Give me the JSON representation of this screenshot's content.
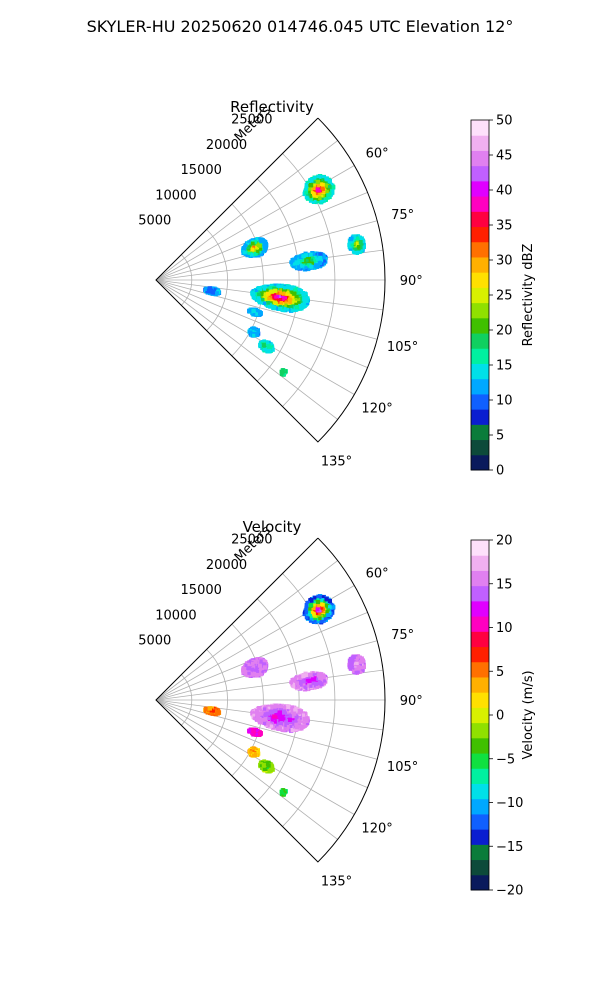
{
  "figure": {
    "suptitle": "SKYLER-HU  20250620  014746.045 UTC Elevation 12°"
  },
  "chart_data": [
    {
      "type": "heatmap",
      "subtype": "polar-sector",
      "title": "Reflectivity",
      "r_axis_label": "Meters",
      "r_ticks": [
        5000,
        10000,
        15000,
        20000,
        25000
      ],
      "r_tick_labels": [
        "5000",
        "10000",
        "15000",
        "20000",
        "25000"
      ],
      "rlim": [
        0,
        32000
      ],
      "theta_range_deg": [
        45,
        135
      ],
      "theta_ticks_deg": [
        60,
        75,
        90,
        105,
        120,
        135
      ],
      "theta_tick_labels": [
        "60°",
        "75°",
        "90°",
        "105°",
        "120°",
        "135°"
      ],
      "grid": true,
      "colorbar": {
        "label": "Reflectivity dBZ",
        "vmin": 0,
        "vmax": 50,
        "ticks": [
          0,
          5,
          10,
          15,
          20,
          25,
          30,
          35,
          40,
          45,
          50
        ],
        "tick_labels": [
          "0",
          "5",
          "10",
          "15",
          "20",
          "25",
          "30",
          "35",
          "40",
          "45",
          "50"
        ],
        "colors": [
          "#0a1a5c",
          "#0d4a3a",
          "#0a7c3a",
          "#0a1ed0",
          "#1060ff",
          "#00a8ff",
          "#00e0e8",
          "#00f0a0",
          "#10d060",
          "#40c000",
          "#90e000",
          "#d8f000",
          "#ffe000",
          "#ffb000",
          "#ff7000",
          "#ff2000",
          "#ff0040",
          "#ff00c0",
          "#e000ff",
          "#c060ff",
          "#e080f0",
          "#f0b0f0",
          "#fde0fb"
        ]
      },
      "cells": [
        {
          "range_m": 26000,
          "azimuth_deg": 61,
          "radial_extent_m": 4200,
          "angular_extent_deg": 8,
          "core_value": 40,
          "edge_value": 15
        },
        {
          "range_m": 14500,
          "azimuth_deg": 72,
          "radial_extent_m": 3600,
          "angular_extent_deg": 9,
          "core_value": 33,
          "edge_value": 12
        },
        {
          "range_m": 28500,
          "azimuth_deg": 80,
          "radial_extent_m": 2200,
          "angular_extent_deg": 5,
          "core_value": 25,
          "edge_value": 14
        },
        {
          "range_m": 21500,
          "azimuth_deg": 83,
          "radial_extent_m": 5000,
          "angular_extent_deg": 6,
          "core_value": 22,
          "edge_value": 12
        },
        {
          "range_m": 17500,
          "azimuth_deg": 98,
          "radial_extent_m": 8000,
          "angular_extent_deg": 11,
          "core_value": 43,
          "edge_value": 14
        },
        {
          "range_m": 8000,
          "azimuth_deg": 101,
          "radial_extent_m": 2000,
          "angular_extent_deg": 6,
          "core_value": 8,
          "edge_value": 12
        },
        {
          "range_m": 14500,
          "azimuth_deg": 108,
          "radial_extent_m": 1800,
          "angular_extent_deg": 3,
          "core_value": 14,
          "edge_value": 12
        },
        {
          "range_m": 15500,
          "azimuth_deg": 118,
          "radial_extent_m": 1400,
          "angular_extent_deg": 4,
          "core_value": 14,
          "edge_value": 12
        },
        {
          "range_m": 18000,
          "azimuth_deg": 121,
          "radial_extent_m": 2000,
          "angular_extent_deg": 4,
          "core_value": 20,
          "edge_value": 14
        },
        {
          "range_m": 22000,
          "azimuth_deg": 126,
          "radial_extent_m": 700,
          "angular_extent_deg": 2,
          "core_value": 18,
          "edge_value": 18
        }
      ]
    },
    {
      "type": "heatmap",
      "subtype": "polar-sector",
      "title": "Velocity",
      "r_axis_label": "Meters",
      "r_ticks": [
        5000,
        10000,
        15000,
        20000,
        25000
      ],
      "r_tick_labels": [
        "5000",
        "10000",
        "15000",
        "20000",
        "25000"
      ],
      "rlim": [
        0,
        32000
      ],
      "theta_range_deg": [
        45,
        135
      ],
      "theta_ticks_deg": [
        60,
        75,
        90,
        105,
        120,
        135
      ],
      "theta_tick_labels": [
        "60°",
        "75°",
        "90°",
        "105°",
        "120°",
        "135°"
      ],
      "grid": true,
      "colorbar": {
        "label": "Velocity (m/s)",
        "vmin": -20,
        "vmax": 20,
        "ticks": [
          -20,
          -15,
          -10,
          -5,
          0,
          5,
          10,
          15,
          20
        ],
        "tick_labels": [
          "−20",
          "−15",
          "−10",
          "−5",
          "0",
          "5",
          "10",
          "15",
          "20"
        ],
        "colors": [
          "#0a1a5c",
          "#0d4a3a",
          "#0a7c3a",
          "#0a1ed0",
          "#1060ff",
          "#00a8ff",
          "#00e0e8",
          "#00f0a0",
          "#10e040",
          "#40c000",
          "#90e000",
          "#d8f000",
          "#ffe000",
          "#ffb000",
          "#ff7000",
          "#ff2000",
          "#ff0040",
          "#ff00c0",
          "#e000ff",
          "#c060ff",
          "#e080f0",
          "#f0b0f0",
          "#fde0fb"
        ]
      },
      "cells": [
        {
          "range_m": 26000,
          "azimuth_deg": 61,
          "radial_extent_m": 4200,
          "angular_extent_deg": 8,
          "core_value": 15,
          "edge_value": -12
        },
        {
          "range_m": 14500,
          "azimuth_deg": 72,
          "radial_extent_m": 3600,
          "angular_extent_deg": 9,
          "core_value": 15,
          "edge_value": 15
        },
        {
          "range_m": 28500,
          "azimuth_deg": 80,
          "radial_extent_m": 2200,
          "angular_extent_deg": 5,
          "core_value": 16,
          "edge_value": 15
        },
        {
          "range_m": 21500,
          "azimuth_deg": 83,
          "radial_extent_m": 5000,
          "angular_extent_deg": 6,
          "core_value": 12,
          "edge_value": 16
        },
        {
          "range_m": 17500,
          "azimuth_deg": 98,
          "radial_extent_m": 8000,
          "angular_extent_deg": 11,
          "core_value": 11,
          "edge_value": 16
        },
        {
          "range_m": 8000,
          "azimuth_deg": 101,
          "radial_extent_m": 2000,
          "angular_extent_deg": 6,
          "core_value": 7,
          "edge_value": 5
        },
        {
          "range_m": 14500,
          "azimuth_deg": 108,
          "radial_extent_m": 1800,
          "angular_extent_deg": 3,
          "core_value": 10,
          "edge_value": 11
        },
        {
          "range_m": 15500,
          "azimuth_deg": 118,
          "radial_extent_m": 1400,
          "angular_extent_deg": 4,
          "core_value": 5,
          "edge_value": 3
        },
        {
          "range_m": 18000,
          "azimuth_deg": 121,
          "radial_extent_m": 2000,
          "angular_extent_deg": 4,
          "core_value": -4,
          "edge_value": -2
        },
        {
          "range_m": 22000,
          "azimuth_deg": 126,
          "radial_extent_m": 700,
          "angular_extent_deg": 2,
          "core_value": -5,
          "edge_value": -5
        }
      ]
    }
  ]
}
